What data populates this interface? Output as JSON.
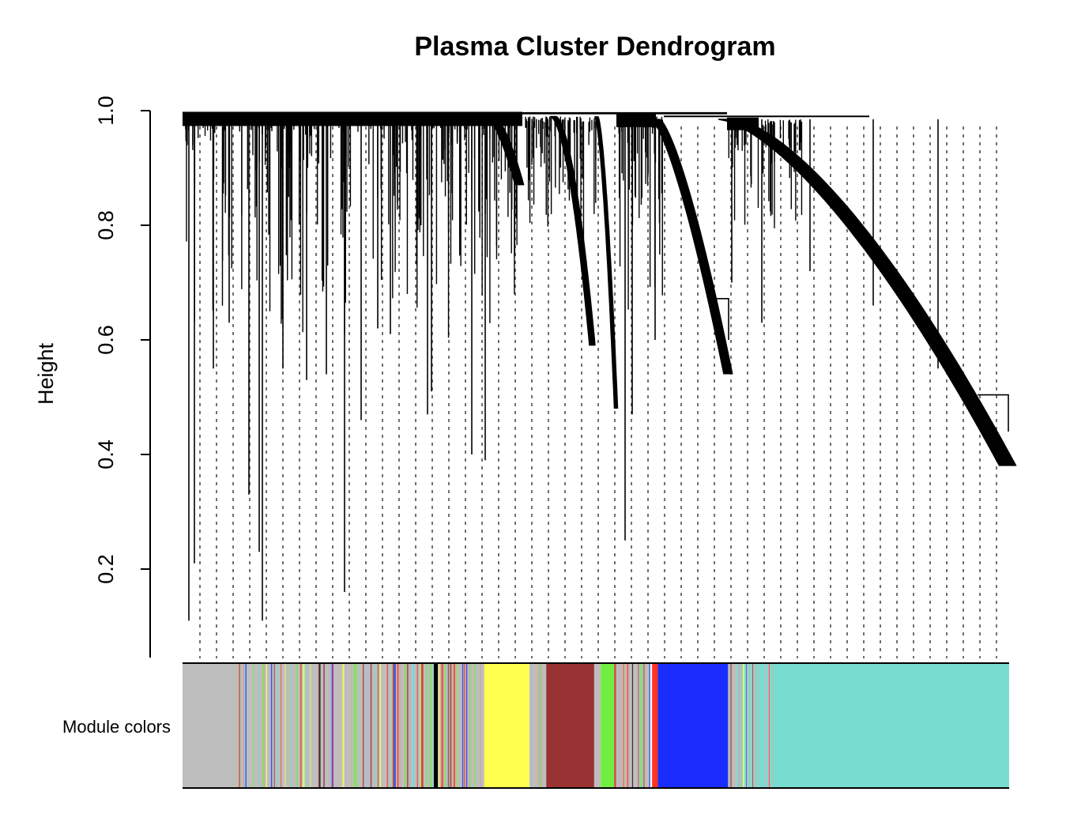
{
  "chart_data": {
    "type": "dendrogram",
    "title": "Plasma Cluster Dendrogram",
    "xlabel": "",
    "ylabel": "Height",
    "ylim": [
      0.05,
      1.0
    ],
    "yticks": [
      0.2,
      0.4,
      0.6,
      0.8,
      1.0
    ],
    "ytick_labels": [
      "0.2",
      "0.4",
      "0.6",
      "0.8",
      "1.0"
    ],
    "color_bar_label": "Module colors",
    "root_height": 1.0,
    "branches": [
      {
        "from": 0.0,
        "to": 0.41,
        "top": 0.995,
        "min_height": 0.11,
        "shape": "flat"
      },
      {
        "from": 0.41,
        "to": 0.405,
        "top": 0.99,
        "min_height": 0.7,
        "shape": "steep"
      },
      {
        "from": 0.42,
        "to": 0.44,
        "top": 0.99,
        "min_height": 0.49,
        "shape": "steep"
      },
      {
        "from": 0.46,
        "to": 0.52,
        "top": 0.99,
        "min_height": 0.25,
        "shape": "flat"
      },
      {
        "from": 0.52,
        "to": 0.66,
        "top": 0.99,
        "min_height": 0.54,
        "shape": "curve"
      },
      {
        "from": 0.66,
        "to": 1.0,
        "top": 0.99,
        "min_height": 0.37,
        "shape": "curve"
      }
    ],
    "module_colors": [
      {
        "color": "#bebebe",
        "from": 0.0,
        "to": 0.065
      },
      {
        "color": "mixed",
        "from": 0.065,
        "to": 0.365
      },
      {
        "color": "#ffff50",
        "from": 0.365,
        "to": 0.42
      },
      {
        "color": "mixed",
        "from": 0.42,
        "to": 0.44
      },
      {
        "color": "#993333",
        "from": 0.44,
        "to": 0.498
      },
      {
        "color": "#bebebe",
        "from": 0.498,
        "to": 0.506
      },
      {
        "color": "#70ee40",
        "from": 0.506,
        "to": 0.522
      },
      {
        "color": "mixed",
        "from": 0.522,
        "to": 0.565
      },
      {
        "color": "#ff3322",
        "from": 0.568,
        "to": 0.575
      },
      {
        "color": "#1b2cff",
        "from": 0.575,
        "to": 0.66
      },
      {
        "color": "mixed",
        "from": 0.66,
        "to": 0.74
      },
      {
        "color": "#77ddd0",
        "from": 0.74,
        "to": 1.0
      }
    ],
    "colors": {
      "grey": "#bebebe",
      "yellow": "#ffff50",
      "brown": "#993333",
      "green": "#70ee40",
      "red": "#ff3322",
      "blue": "#1b2cff",
      "turquoise": "#77ddd0",
      "black": "#000000"
    }
  }
}
